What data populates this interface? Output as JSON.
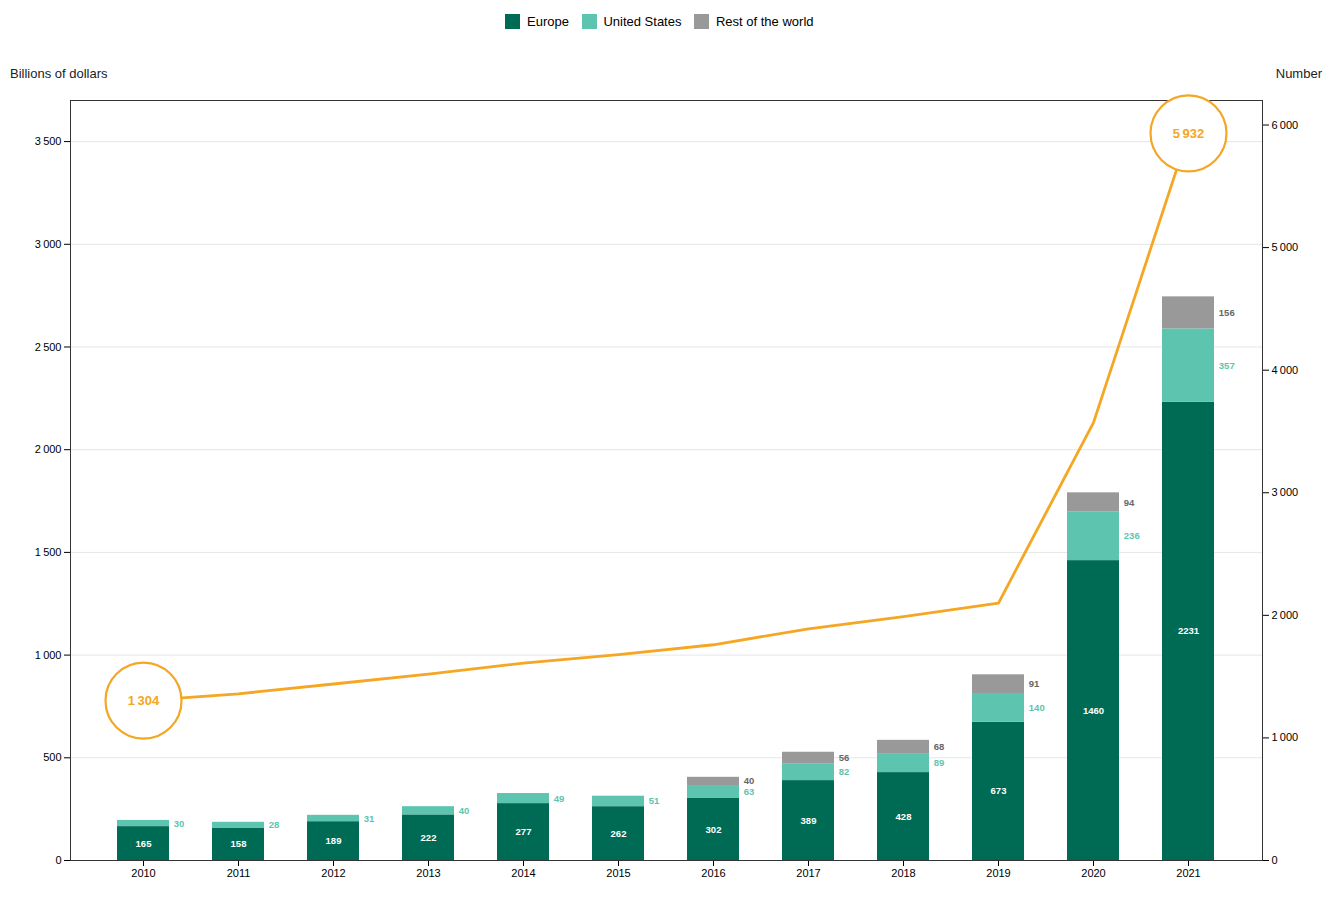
{
  "chart_data": {
    "type": "bar",
    "stacked": true,
    "categories": [
      "2010",
      "2011",
      "2012",
      "2013",
      "2014",
      "2015",
      "2016",
      "2017",
      "2018",
      "2019",
      "2020",
      "2021"
    ],
    "ylabel": "Billions of dollars",
    "y2label": "Number",
    "ylim": [
      0,
      3700
    ],
    "yticks": [
      0,
      500,
      {
        "value": 1000,
        "label": "1 000"
      },
      {
        "value": 1500,
        "label": "1 500"
      },
      {
        "value": 2000,
        "label": "2 000"
      },
      {
        "value": 2500,
        "label": "2 500"
      },
      {
        "value": 3000,
        "label": "3 000"
      },
      {
        "value": 3500,
        "label": "3 500"
      }
    ],
    "y2lim": [
      0,
      6200
    ],
    "y2ticks": [
      0,
      {
        "value": 1000,
        "label": "1 000"
      },
      {
        "value": 2000,
        "label": "2 000"
      },
      {
        "value": 3000,
        "label": "3 000"
      },
      {
        "value": 4000,
        "label": "4 000"
      },
      {
        "value": 5000,
        "label": "5 000"
      },
      {
        "value": 6000,
        "label": "6 000"
      }
    ],
    "grid": true,
    "legend": "top",
    "series": [
      {
        "name": "Europe",
        "color": "#006B54",
        "data_labels": true,
        "values": [
          165,
          158,
          189,
          222,
          277,
          262,
          302,
          389,
          428,
          673,
          1460,
          2231
        ]
      },
      {
        "name": "United States",
        "color": "#5DC4B0",
        "data_labels": true,
        "values": [
          30,
          28,
          31,
          40,
          49,
          51,
          63,
          82,
          89,
          140,
          236,
          357
        ]
      },
      {
        "name": "Rest of the world",
        "color": "#999999",
        "data_labels": true,
        "values": [
          0,
          0,
          0,
          0,
          0,
          0,
          40,
          56,
          68,
          91,
          94,
          156
        ]
      },
      {
        "type": "line",
        "axis": "y2",
        "color": "#F5A623",
        "values": [
          1304,
          1360,
          1440,
          1520,
          1610,
          1680,
          1760,
          1890,
          1990,
          2100,
          3572,
          5932
        ]
      }
    ],
    "annotations": [
      {
        "text": "1 304",
        "x": "2010",
        "y": 1304,
        "axis": "y2"
      },
      {
        "text": "5 932",
        "x": "2021",
        "y": 5932,
        "axis": "y2"
      }
    ]
  }
}
